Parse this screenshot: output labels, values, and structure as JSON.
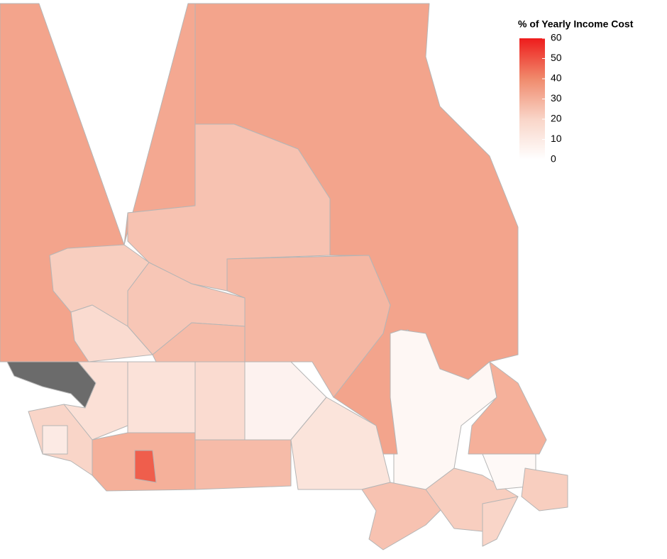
{
  "legend": {
    "title": "% of Yearly Income Cost",
    "range": [
      0,
      60
    ],
    "ticks": [
      0,
      10,
      20,
      30,
      40,
      50,
      60
    ],
    "colors": [
      "#ffffff",
      "#f9d5c8",
      "#f08a6c",
      "#ee1c1c"
    ]
  },
  "no_data_color": "#6b6b6b",
  "regions": [
    33,
    32,
    33,
    25,
    22,
    24,
    28,
    17,
    27,
    null,
    15,
    14,
    17,
    6,
    20,
    30,
    48,
    27,
    13,
    4,
    30,
    25,
    22,
    3,
    22,
    20,
    10
  ]
}
